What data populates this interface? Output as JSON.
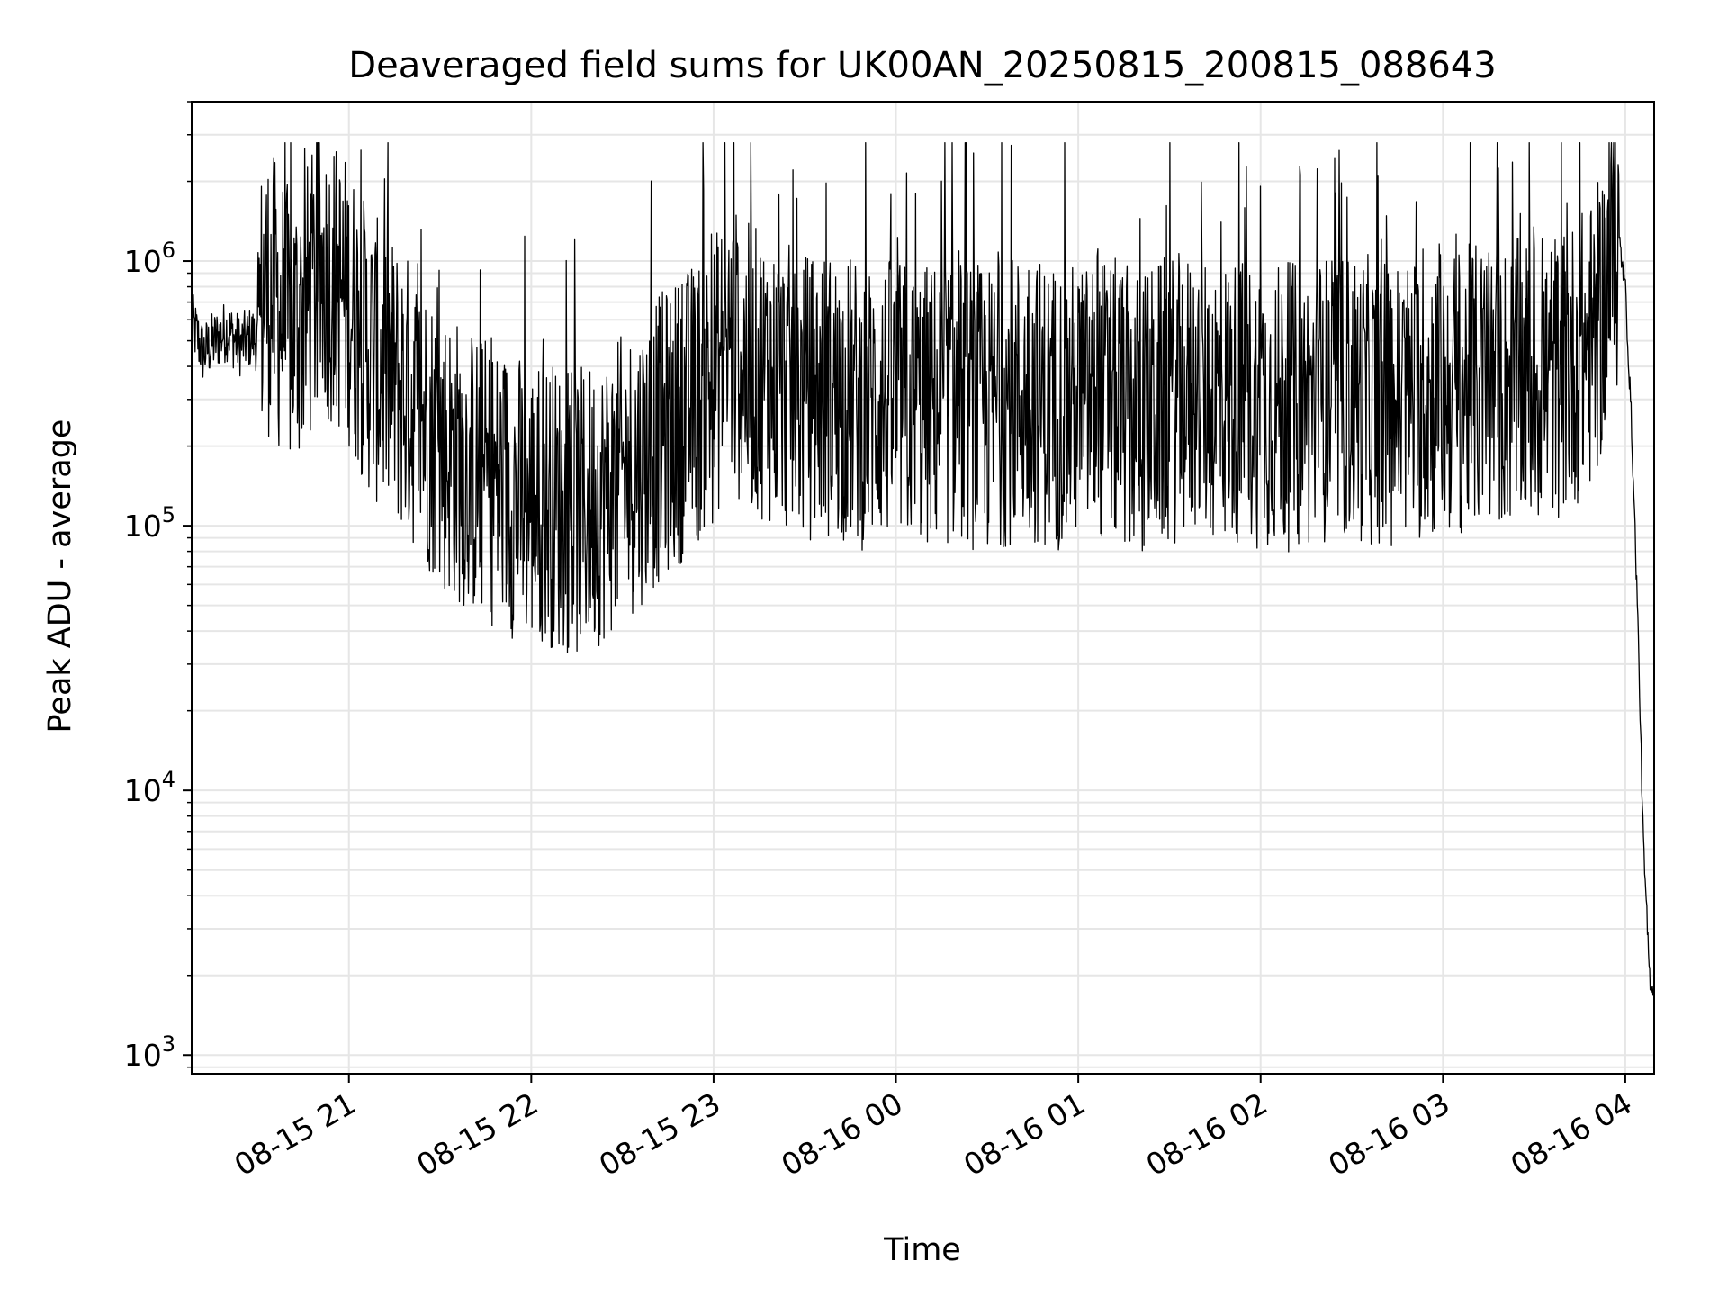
{
  "chart_data": {
    "type": "line",
    "title": "Deaveraged field sums for UK00AN_20250815_200815_088643",
    "xlabel": "Time",
    "ylabel": "Peak ADU - average",
    "yscale": "log",
    "ylim": [
      850,
      4000000
    ],
    "xlim": [
      "2025-08-15 20:08:15",
      "2025-08-16 04:09:30"
    ],
    "grid": true,
    "line_color": "#000000",
    "grid_color": "#e6e6e6",
    "x_ticks": [
      {
        "value": "2025-08-15 21:00",
        "label": "08-15 21"
      },
      {
        "value": "2025-08-15 22:00",
        "label": "08-15 22"
      },
      {
        "value": "2025-08-15 23:00",
        "label": "08-15 23"
      },
      {
        "value": "2025-08-16 00:00",
        "label": "08-16 00"
      },
      {
        "value": "2025-08-16 01:00",
        "label": "08-16 01"
      },
      {
        "value": "2025-08-16 02:00",
        "label": "08-16 02"
      },
      {
        "value": "2025-08-16 03:00",
        "label": "08-16 03"
      },
      {
        "value": "2025-08-16 04:00",
        "label": "08-16 04"
      }
    ],
    "y_ticks": [
      {
        "value": 1000,
        "base": "10",
        "exp": "3"
      },
      {
        "value": 10000,
        "base": "10",
        "exp": "4"
      },
      {
        "value": 100000,
        "base": "10",
        "exp": "5"
      },
      {
        "value": 1000000,
        "base": "10",
        "exp": "6"
      }
    ],
    "series": [
      {
        "x": [
          "2025-08-15 20:08",
          "2025-08-15 20:12",
          "2025-08-15 20:16",
          "2025-08-15 20:20",
          "2025-08-15 20:24",
          "2025-08-15 20:28",
          "2025-08-15 20:30",
          "2025-08-15 20:32",
          "2025-08-15 20:36",
          "2025-08-15 20:40",
          "2025-08-15 20:44",
          "2025-08-15 20:48",
          "2025-08-15 20:52",
          "2025-08-15 20:56",
          "2025-08-15 21:00",
          "2025-08-15 21:05",
          "2025-08-15 21:10",
          "2025-08-15 21:15",
          "2025-08-15 21:20",
          "2025-08-15 21:25",
          "2025-08-15 21:30",
          "2025-08-15 21:35",
          "2025-08-15 21:40",
          "2025-08-15 21:45",
          "2025-08-15 21:50",
          "2025-08-15 21:55",
          "2025-08-15 22:00",
          "2025-08-15 22:05",
          "2025-08-15 22:10",
          "2025-08-15 22:15",
          "2025-08-15 22:20",
          "2025-08-15 22:25",
          "2025-08-15 22:30",
          "2025-08-15 22:35",
          "2025-08-15 22:40",
          "2025-08-15 22:45",
          "2025-08-15 22:50",
          "2025-08-15 22:55",
          "2025-08-15 23:00",
          "2025-08-15 23:05",
          "2025-08-15 23:10",
          "2025-08-15 23:15",
          "2025-08-15 23:20",
          "2025-08-15 23:25",
          "2025-08-15 23:30",
          "2025-08-15 23:35",
          "2025-08-15 23:40",
          "2025-08-15 23:45",
          "2025-08-15 23:50",
          "2025-08-15 23:55",
          "2025-08-16 00:00",
          "2025-08-16 00:10",
          "2025-08-16 00:20",
          "2025-08-16 00:30",
          "2025-08-16 00:40",
          "2025-08-16 00:50",
          "2025-08-16 01:00",
          "2025-08-16 01:10",
          "2025-08-16 01:20",
          "2025-08-16 01:30",
          "2025-08-16 01:40",
          "2025-08-16 01:50",
          "2025-08-16 02:00",
          "2025-08-16 02:10",
          "2025-08-16 02:20",
          "2025-08-16 02:30",
          "2025-08-16 02:40",
          "2025-08-16 02:50",
          "2025-08-16 03:00",
          "2025-08-16 03:10",
          "2025-08-16 03:20",
          "2025-08-16 03:30",
          "2025-08-16 03:40",
          "2025-08-16 03:50",
          "2025-08-16 03:55",
          "2025-08-16 03:58",
          "2025-08-16 04:00",
          "2025-08-16 04:02",
          "2025-08-16 04:04",
          "2025-08-16 04:06",
          "2025-08-16 04:08",
          "2025-08-16 04:09"
        ],
        "y": [
          600000,
          450000,
          500000,
          550000,
          480000,
          520000,
          500000,
          800000,
          700000,
          550000,
          600000,
          750000,
          900000,
          800000,
          700000,
          500000,
          400000,
          350000,
          300000,
          250000,
          200000,
          180000,
          160000,
          150000,
          140000,
          130000,
          120000,
          125000,
          115000,
          110000,
          120000,
          130000,
          150000,
          170000,
          200000,
          230000,
          260000,
          300000,
          350000,
          500000,
          400000,
          380000,
          350000,
          330000,
          300000,
          320000,
          310000,
          300000,
          280000,
          300000,
          290000,
          280000,
          300000,
          270000,
          310000,
          290000,
          280000,
          300000,
          260000,
          300000,
          310000,
          300000,
          290000,
          280000,
          300000,
          310000,
          290000,
          300000,
          320000,
          330000,
          340000,
          350000,
          380000,
          500000,
          900000,
          1200000,
          800000,
          250000,
          50000,
          6000,
          2000,
          1800
        ]
      }
    ]
  }
}
